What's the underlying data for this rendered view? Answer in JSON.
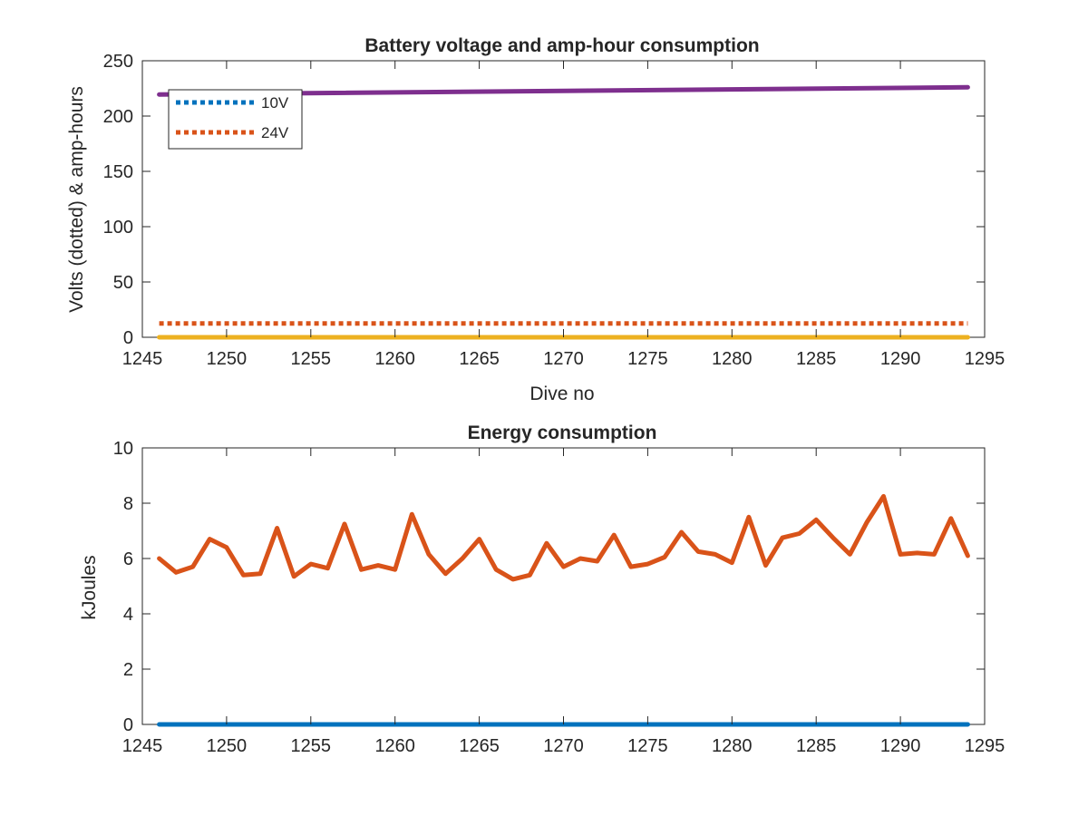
{
  "chart_data": [
    {
      "type": "line",
      "title": "Battery voltage and amp-hour consumption",
      "xlabel": "Dive no",
      "ylabel": "Volts (dotted) & amp-hours",
      "xlim": [
        1245,
        1295
      ],
      "ylim": [
        0,
        250
      ],
      "xticks": [
        1245,
        1250,
        1255,
        1260,
        1265,
        1270,
        1275,
        1280,
        1285,
        1290,
        1295
      ],
      "yticks": [
        0,
        50,
        100,
        150,
        200,
        250
      ],
      "grid": false,
      "legend_position": "top-left",
      "series": [
        {
          "name": "10V",
          "style": "dotted",
          "color": "#0072BD",
          "x": [
            1246,
            1294
          ],
          "y": [
            0,
            0
          ]
        },
        {
          "name": "24V",
          "style": "dotted",
          "color": "#D95319",
          "x": [
            1246,
            1294
          ],
          "y": [
            12.5,
            12.5
          ]
        },
        {
          "style": "solid",
          "color": "#7E2F8E",
          "x": [
            1246,
            1294
          ],
          "y": [
            219.5,
            226
          ]
        },
        {
          "style": "solid",
          "color": "#EDB120",
          "x": [
            1246,
            1294
          ],
          "y": [
            0,
            0
          ]
        }
      ]
    },
    {
      "type": "line",
      "title": "Energy consumption",
      "xlabel": "",
      "ylabel": "kJoules",
      "xlim": [
        1245,
        1295
      ],
      "ylim": [
        0,
        10
      ],
      "xticks": [
        1245,
        1250,
        1255,
        1260,
        1265,
        1270,
        1275,
        1280,
        1285,
        1290,
        1295
      ],
      "yticks": [
        0,
        2,
        4,
        6,
        8,
        10
      ],
      "grid": false,
      "series": [
        {
          "style": "solid",
          "color": "#D95319",
          "x": [
            1246,
            1247,
            1248,
            1249,
            1250,
            1251,
            1252,
            1253,
            1254,
            1255,
            1256,
            1257,
            1258,
            1259,
            1260,
            1261,
            1262,
            1263,
            1264,
            1265,
            1266,
            1267,
            1268,
            1269,
            1270,
            1271,
            1272,
            1273,
            1274,
            1275,
            1276,
            1277,
            1278,
            1279,
            1280,
            1281,
            1282,
            1283,
            1284,
            1285,
            1286,
            1287,
            1288,
            1289,
            1290,
            1291,
            1292,
            1293,
            1294
          ],
          "y": [
            6.0,
            5.5,
            5.7,
            6.7,
            6.4,
            5.4,
            5.45,
            7.1,
            5.35,
            5.8,
            5.65,
            7.25,
            5.6,
            5.75,
            5.6,
            7.6,
            6.15,
            5.45,
            6.0,
            6.7,
            5.6,
            5.25,
            5.4,
            6.55,
            5.7,
            6.0,
            5.9,
            6.85,
            5.7,
            5.8,
            6.05,
            6.95,
            6.25,
            6.15,
            5.85,
            7.5,
            5.75,
            6.75,
            6.9,
            7.4,
            6.75,
            6.15,
            7.3,
            8.25,
            6.15,
            6.2,
            6.15,
            7.45,
            6.1
          ]
        },
        {
          "style": "solid",
          "color": "#0072BD",
          "x": [
            1246,
            1294
          ],
          "y": [
            0,
            0
          ]
        }
      ]
    }
  ]
}
